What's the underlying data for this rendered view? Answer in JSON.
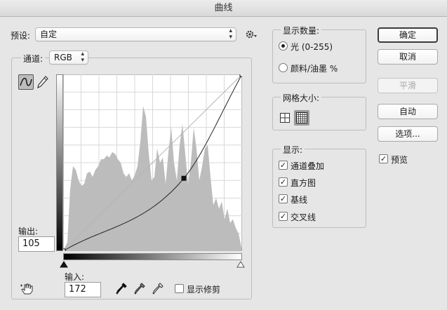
{
  "window": {
    "title": "曲线"
  },
  "preset": {
    "label": "预设:",
    "value": "自定",
    "gear_icon": "gear-icon"
  },
  "channel": {
    "label": "通道:",
    "value": "RGB"
  },
  "output": {
    "label": "输出:",
    "value": "105"
  },
  "input": {
    "label": "输入:",
    "value": "172"
  },
  "show_clipping": {
    "label": "显示修剪",
    "checked": false
  },
  "show_amount": {
    "title": "显示数量:",
    "options": [
      {
        "label": "光 (0-255)",
        "selected": true
      },
      {
        "label": "颜料/油墨 %",
        "selected": false
      }
    ]
  },
  "grid_size": {
    "title": "网格大小:",
    "simple_icon": "grid-4-icon",
    "detailed_icon": "grid-10-icon",
    "selected": "detailed"
  },
  "show": {
    "title": "显示:",
    "options": [
      {
        "label": "通道叠加",
        "checked": true
      },
      {
        "label": "直方图",
        "checked": true
      },
      {
        "label": "基线",
        "checked": true
      },
      {
        "label": "交叉线",
        "checked": true
      }
    ]
  },
  "buttons": {
    "ok": "确定",
    "cancel": "取消",
    "smooth": "平滑",
    "auto": "自动",
    "options": "选项..."
  },
  "preview": {
    "label": "预览",
    "checked": true
  },
  "curve": {
    "points": [
      [
        0,
        0
      ],
      [
        172,
        105
      ],
      [
        255,
        255
      ]
    ],
    "baseline": [
      [
        0,
        0
      ],
      [
        255,
        255
      ]
    ],
    "histogram": [
      [
        0,
        0
      ],
      [
        6,
        5
      ],
      [
        10,
        35
      ],
      [
        14,
        48
      ],
      [
        18,
        46
      ],
      [
        22,
        40
      ],
      [
        26,
        37
      ],
      [
        30,
        38
      ],
      [
        34,
        44
      ],
      [
        38,
        45
      ],
      [
        42,
        42
      ],
      [
        46,
        46
      ],
      [
        50,
        48
      ],
      [
        54,
        52
      ],
      [
        58,
        52
      ],
      [
        62,
        54
      ],
      [
        66,
        53
      ],
      [
        70,
        56
      ],
      [
        74,
        55
      ],
      [
        78,
        52
      ],
      [
        82,
        50
      ],
      [
        86,
        44
      ],
      [
        90,
        42
      ],
      [
        94,
        44
      ],
      [
        98,
        40
      ],
      [
        102,
        43
      ],
      [
        106,
        48
      ],
      [
        110,
        62
      ],
      [
        114,
        82
      ],
      [
        118,
        76
      ],
      [
        122,
        55
      ],
      [
        126,
        40
      ],
      [
        130,
        42
      ],
      [
        134,
        58
      ],
      [
        138,
        50
      ],
      [
        142,
        53
      ],
      [
        146,
        38
      ],
      [
        150,
        56
      ],
      [
        154,
        70
      ],
      [
        158,
        50
      ],
      [
        162,
        40
      ],
      [
        166,
        60
      ],
      [
        170,
        72
      ],
      [
        174,
        55
      ],
      [
        178,
        38
      ],
      [
        182,
        50
      ],
      [
        186,
        70
      ],
      [
        190,
        58
      ],
      [
        194,
        40
      ],
      [
        198,
        48
      ],
      [
        202,
        58
      ],
      [
        206,
        60
      ],
      [
        210,
        42
      ],
      [
        214,
        26
      ],
      [
        218,
        30
      ],
      [
        222,
        24
      ],
      [
        226,
        28
      ],
      [
        230,
        18
      ],
      [
        234,
        24
      ],
      [
        238,
        16
      ],
      [
        242,
        18
      ],
      [
        246,
        13
      ],
      [
        250,
        10
      ],
      [
        255,
        0
      ]
    ]
  }
}
